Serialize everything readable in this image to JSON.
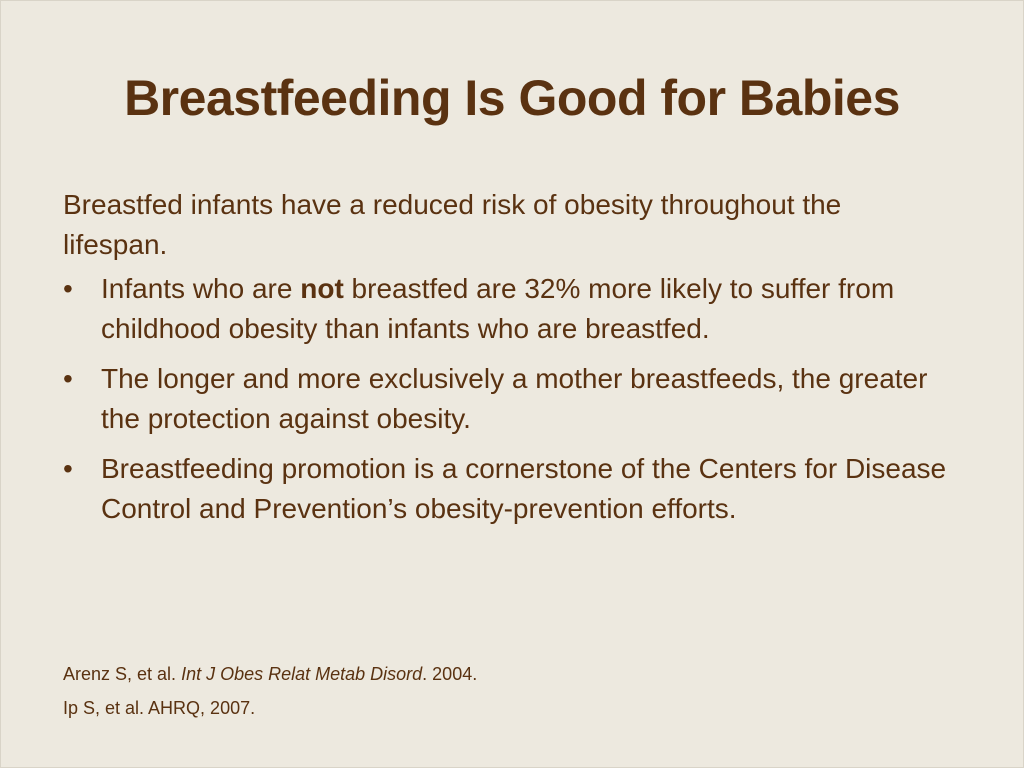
{
  "slide": {
    "title": "Breastfeeding Is Good for Babies",
    "intro": "Breastfed infants have a reduced risk of obesity throughout the lifespan.",
    "bullets": [
      {
        "before": "Infants who are ",
        "bold": "not",
        "after": " breastfed are 32% more likely to suffer from childhood obesity than infants who are breastfed."
      },
      {
        "text": "The longer and more exclusively a mother breastfeeds, the greater the protection against obesity."
      },
      {
        "text": "Breastfeeding promotion is a cornerstone of the Centers for Disease Control and Prevention’s obesity-prevention efforts."
      }
    ],
    "bullet_glyph": "•",
    "references": [
      {
        "authors": "Arenz S, et al. ",
        "journal": "Int J Obes Relat Metab Disord",
        "year": ". 2004."
      },
      {
        "text": "Ip S, et al. AHRQ, 2007."
      }
    ]
  },
  "colors": {
    "background": "#ede9df",
    "text": "#5a3211"
  }
}
